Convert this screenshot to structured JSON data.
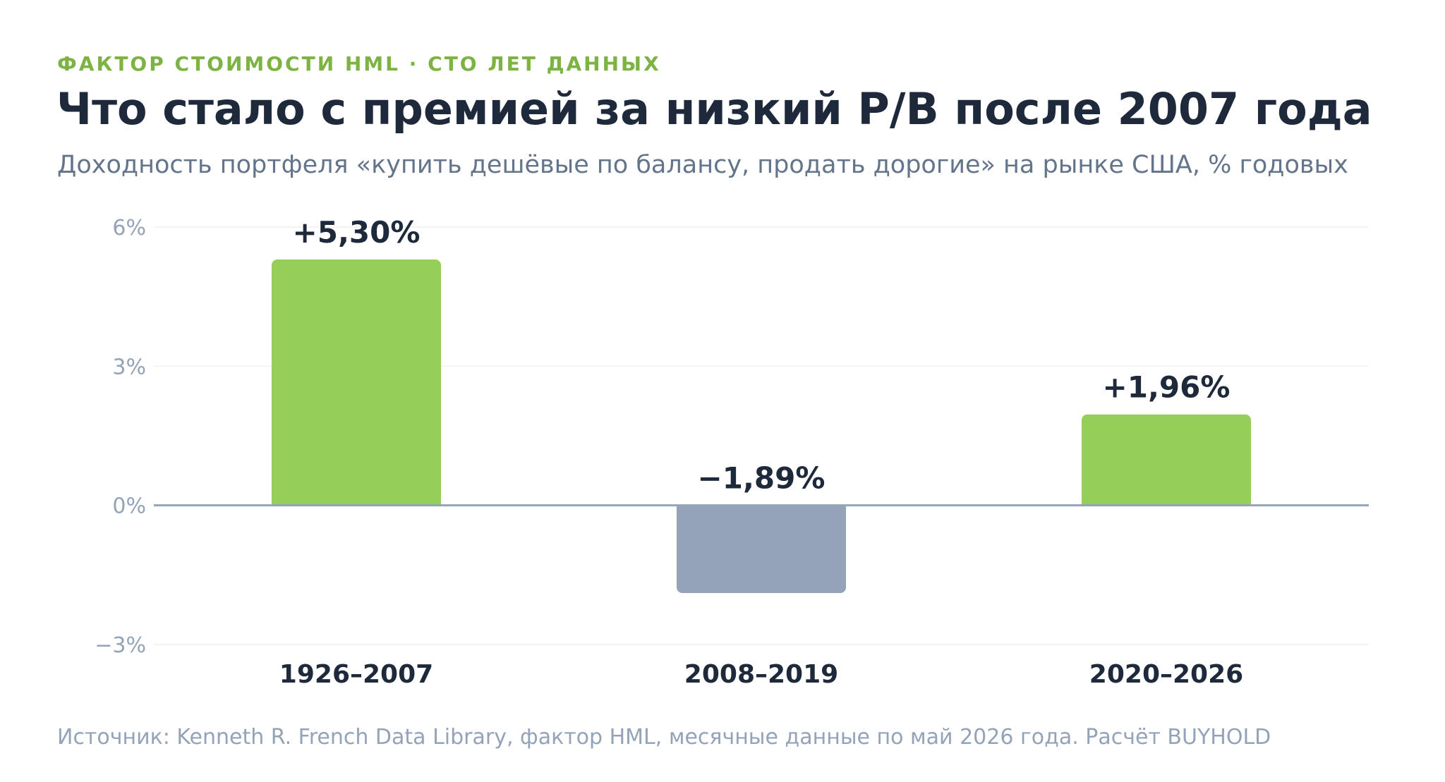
{
  "header": {
    "kicker": "ФАКТОР СТОИМОСТИ HML · СТО ЛЕТ ДАННЫХ",
    "title": "Что стало с премией за низкий P/B после 2007 года",
    "subtitle": "Доходность портфеля «купить дешёвые по балансу, продать дорогие» на рынке США, % годовых"
  },
  "chart_data": {
    "type": "bar",
    "categories": [
      "1926–2007",
      "2008–2019",
      "2020–2026"
    ],
    "values": [
      5.3,
      -1.89,
      1.96
    ],
    "value_labels": [
      "+5,30%",
      "−1,89%",
      "+1,96%"
    ],
    "ylim": [
      -3,
      6
    ],
    "yticks": [
      6,
      3,
      0,
      -3
    ],
    "ytick_labels": [
      "6%",
      "3%",
      "0%",
      "−3%"
    ],
    "grid": true,
    "xlabel": "",
    "ylabel": "",
    "colors": {
      "positive": "#96ce5a",
      "negative": "#94a3b8",
      "zero_line": "#94a3b8",
      "grid": "#eef1f5",
      "tick_label": "#94a3b8",
      "value_label": "#1e293b",
      "category_label": "#1e293b"
    }
  },
  "footer": {
    "source": "Источник: Kenneth R. French Data Library, фактор HML, месячные данные по май 2026 года. Расчёт BUYHOLD"
  }
}
